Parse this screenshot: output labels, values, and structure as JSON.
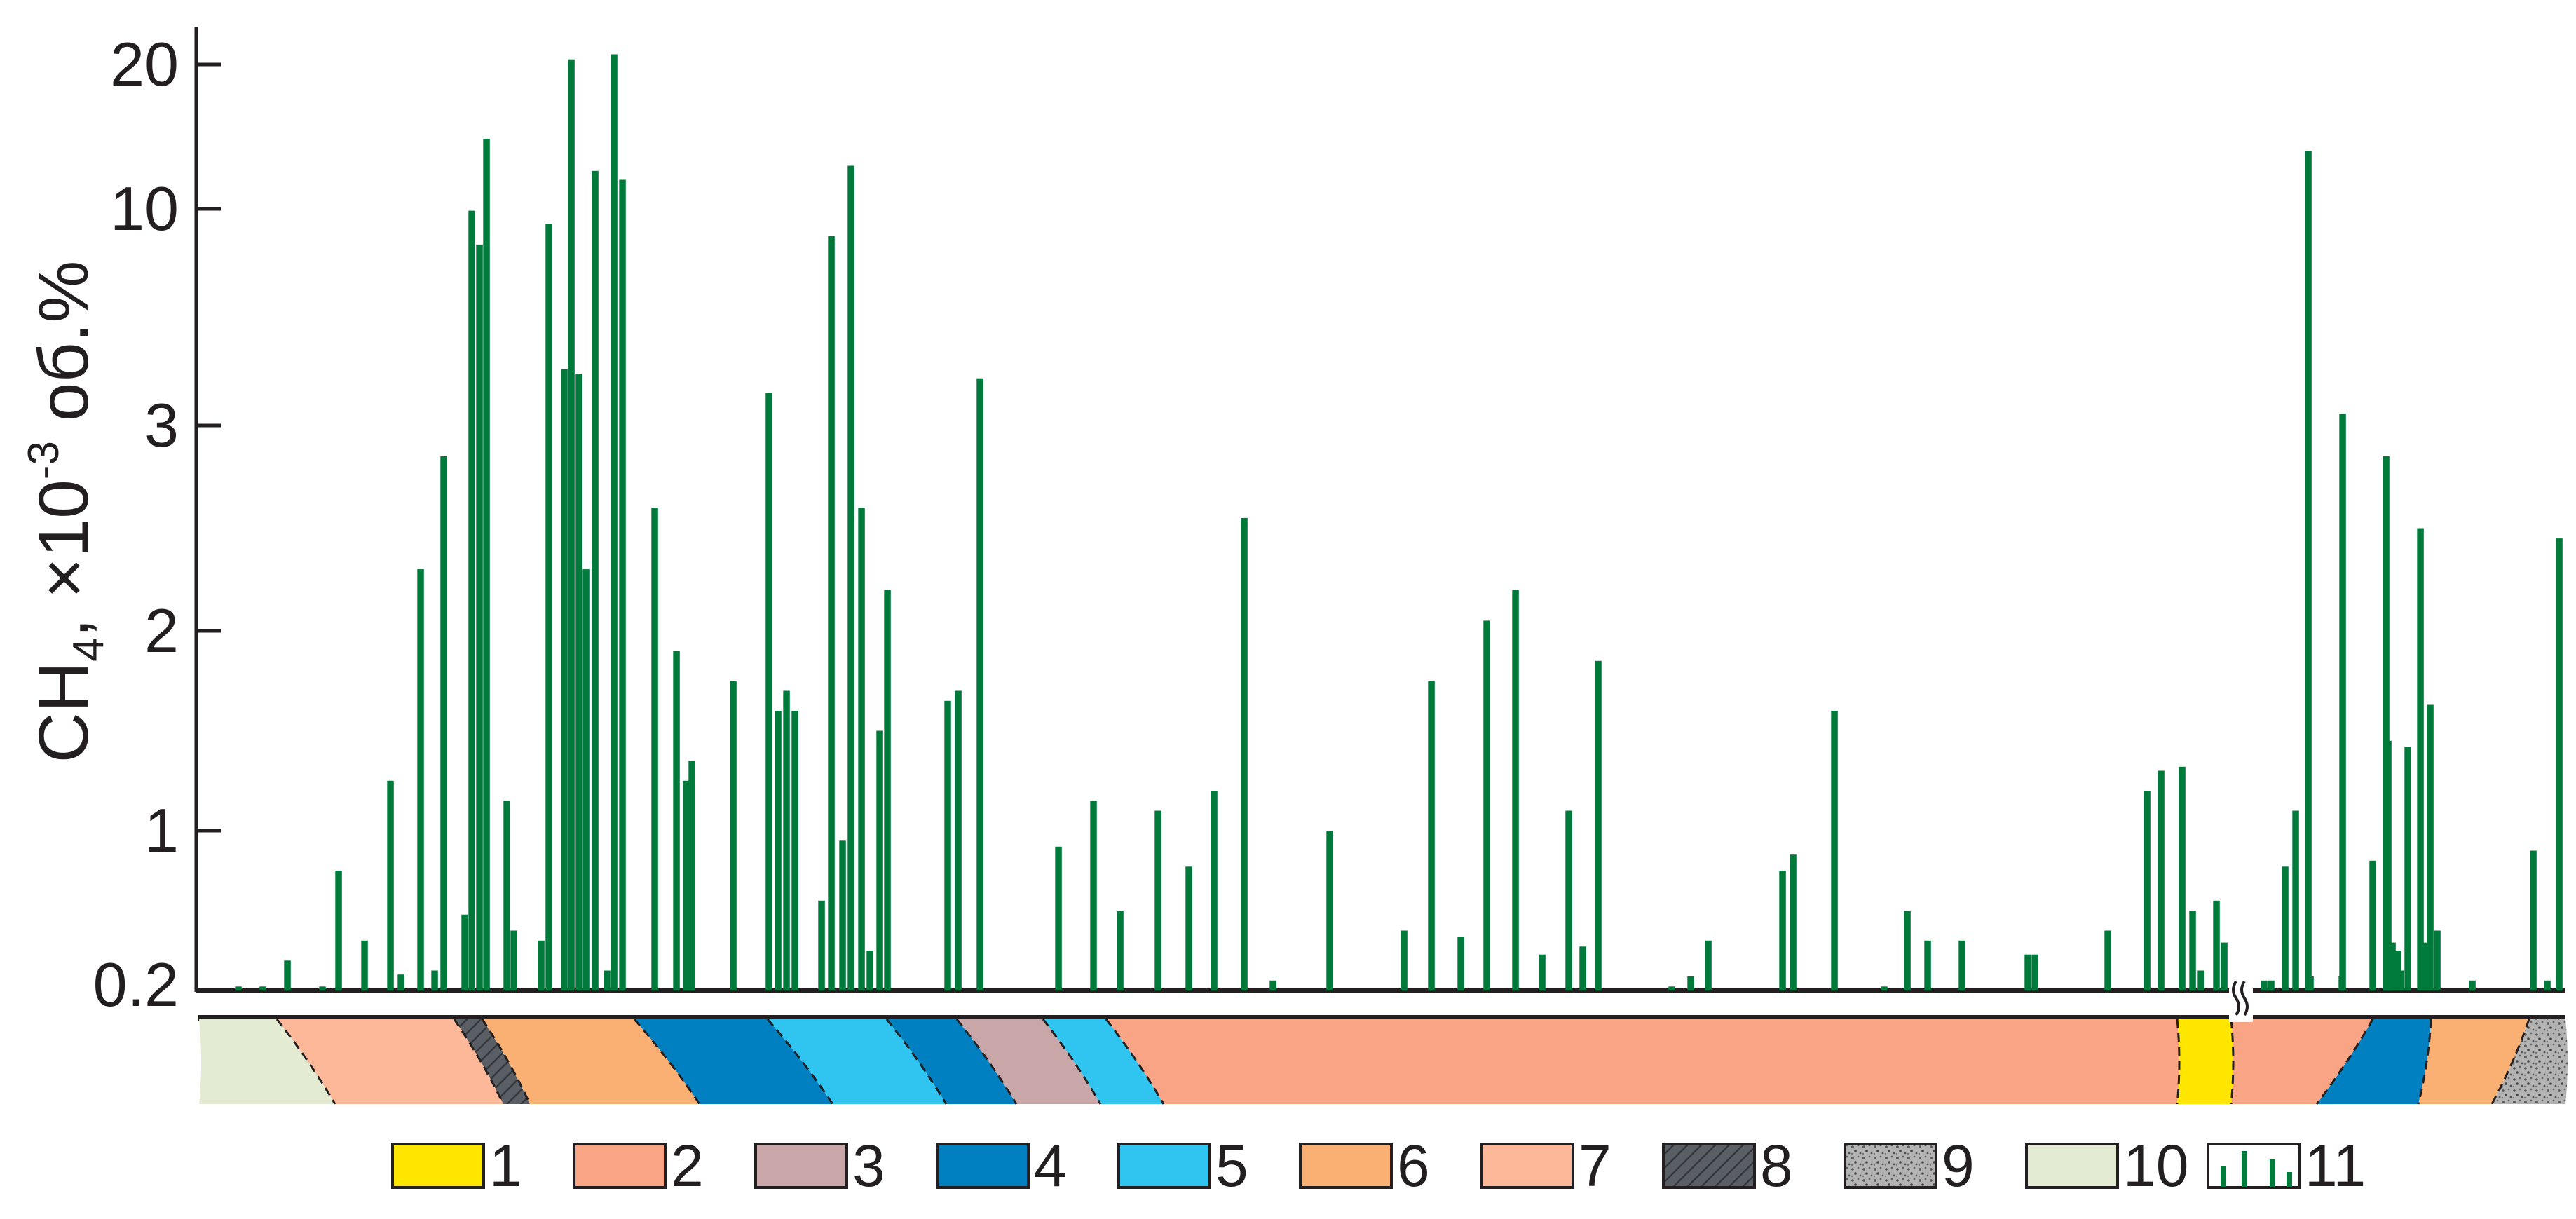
{
  "chart_data": {
    "type": "bar",
    "ylabel": {
      "base": "CH",
      "sub": "4",
      "mid": ", ×10",
      "sup": "-3",
      "end": " об.%"
    },
    "y_axis_scale": "nonlinear",
    "y_ticks": [
      "20",
      "10",
      "3",
      "2",
      "1",
      "0.2"
    ],
    "grid": false,
    "bar_color": "#007a3a",
    "values": [
      0.22,
      0.22,
      0.35,
      0.22,
      0.8,
      0.45,
      1.25,
      0.28,
      2.3,
      0.3,
      2.85,
      0.58,
      9.9,
      8.2,
      14.0,
      1.15,
      0.5,
      0.45,
      9.2,
      4.1,
      20.5,
      4.0,
      2.3,
      12.0,
      0.3,
      21.0,
      11.5,
      2.6,
      1.9,
      1.25,
      1.35,
      1.75,
      3.6,
      1.6,
      1.7,
      1.6,
      0.65,
      8.6,
      0.95,
      12.3,
      2.6,
      0.4,
      1.5,
      2.2,
      1.65,
      1.7,
      3.9,
      0.92,
      1.15,
      0.6,
      1.1,
      0.82,
      1.2,
      2.55,
      0.25,
      1.0,
      0.5,
      1.75,
      0.47,
      2.05,
      2.2,
      0.38,
      1.1,
      0.42,
      1.85,
      0.22,
      0.27,
      0.45,
      0.8,
      0.88,
      1.6,
      0.22,
      0.6,
      0.45,
      0.45,
      0.38,
      0.38,
      0.5,
      1.2,
      1.3,
      1.32,
      0.6,
      0.3,
      0.65,
      0.44,
      0.25,
      0.25,
      0.82,
      1.1,
      0.27,
      0.27,
      13.2,
      3.2,
      2.85,
      0.85,
      1.45,
      0.44,
      0.4,
      0.3,
      1.42,
      2.5,
      0.44,
      1.63,
      0.5,
      0.25,
      0.9,
      0.25,
      2.45
    ],
    "legend": [
      {
        "label": "1",
        "color": "#ffe600",
        "pattern": "solid"
      },
      {
        "label": "2",
        "color": "#f9a585",
        "pattern": "solid"
      },
      {
        "label": "3",
        "color": "#c9a7a8",
        "pattern": "solid"
      },
      {
        "label": "4",
        "color": "#0080c0",
        "pattern": "solid"
      },
      {
        "label": "5",
        "color": "#30c4f0",
        "pattern": "solid"
      },
      {
        "label": "6",
        "color": "#fbb073",
        "pattern": "solid"
      },
      {
        "label": "7",
        "color": "#fdb899",
        "pattern": "solid"
      },
      {
        "label": "8",
        "color": "#5a5f65",
        "pattern": "hatch"
      },
      {
        "label": "9",
        "color": "#a8a8a8",
        "pattern": "speckle"
      },
      {
        "label": "10",
        "color": "#e3ebd2",
        "pattern": "solid"
      },
      {
        "label": "11",
        "color": "#ffffff",
        "pattern": "bars-icon"
      }
    ],
    "section_layers": [
      {
        "unit": "10",
        "color": "#e3ebd2"
      },
      {
        "unit": "7",
        "color": "#fdb899"
      },
      {
        "unit": "8",
        "color": "#5a5f65"
      },
      {
        "unit": "6",
        "color": "#fbb073"
      },
      {
        "unit": "4",
        "color": "#0080c0"
      },
      {
        "unit": "5",
        "color": "#30c4f0"
      },
      {
        "unit": "4",
        "color": "#0080c0"
      },
      {
        "unit": "3",
        "color": "#c9a7a8"
      },
      {
        "unit": "5",
        "color": "#30c4f0"
      },
      {
        "unit": "2",
        "color": "#f9a585"
      },
      {
        "unit": "1",
        "color": "#ffe600"
      },
      {
        "unit": "2",
        "color": "#f9a585"
      },
      {
        "unit": "4",
        "color": "#0080c0"
      },
      {
        "unit": "6",
        "color": "#fbb073"
      },
      {
        "unit": "9",
        "color": "#a8a8a8"
      }
    ]
  }
}
